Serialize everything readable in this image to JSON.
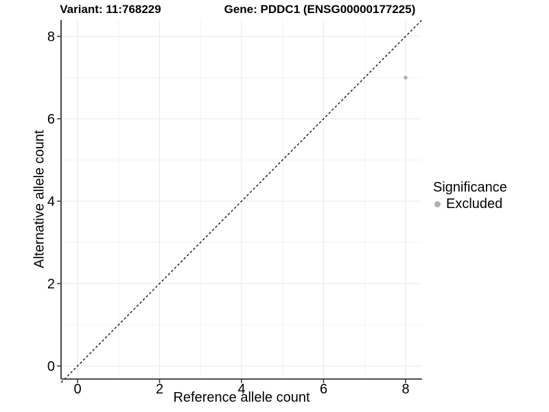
{
  "chart_data": {
    "type": "scatter",
    "title_left": "Variant: 11:768229",
    "title_right": "Gene: PDDC1 (ENSG00000177225)",
    "xlabel": "Reference allele count",
    "ylabel": "Alternative allele count",
    "xlim": [
      -0.4,
      8.4
    ],
    "ylim": [
      -0.4,
      8.4
    ],
    "x_major_ticks": [
      0,
      2,
      4,
      6,
      8
    ],
    "y_major_ticks": [
      0,
      2,
      4,
      6,
      8
    ],
    "x_minor_ticks": [
      1,
      3,
      5,
      7
    ],
    "y_minor_ticks": [
      1,
      3,
      5,
      7
    ],
    "grid": "on",
    "legend_position": "right",
    "identity_line": {
      "style": "dashed",
      "color": "#000000",
      "from": [
        -0.4,
        -0.4
      ],
      "to": [
        8.4,
        8.4
      ]
    },
    "series": [
      {
        "name": "Excluded",
        "color": "#b0b0b0",
        "points": [
          {
            "x": 8,
            "y": 7
          }
        ]
      }
    ],
    "legend": {
      "title": "Significance",
      "items": [
        {
          "label": "Excluded",
          "color": "#b0b0b0",
          "marker": "circle"
        }
      ]
    },
    "colors": {
      "background": "#ffffff",
      "axis_line": "#333333",
      "tick_mark": "#333333",
      "text": "#000000",
      "grid_major": "#e7e7e7",
      "grid_minor": "#f1f1f1"
    }
  }
}
